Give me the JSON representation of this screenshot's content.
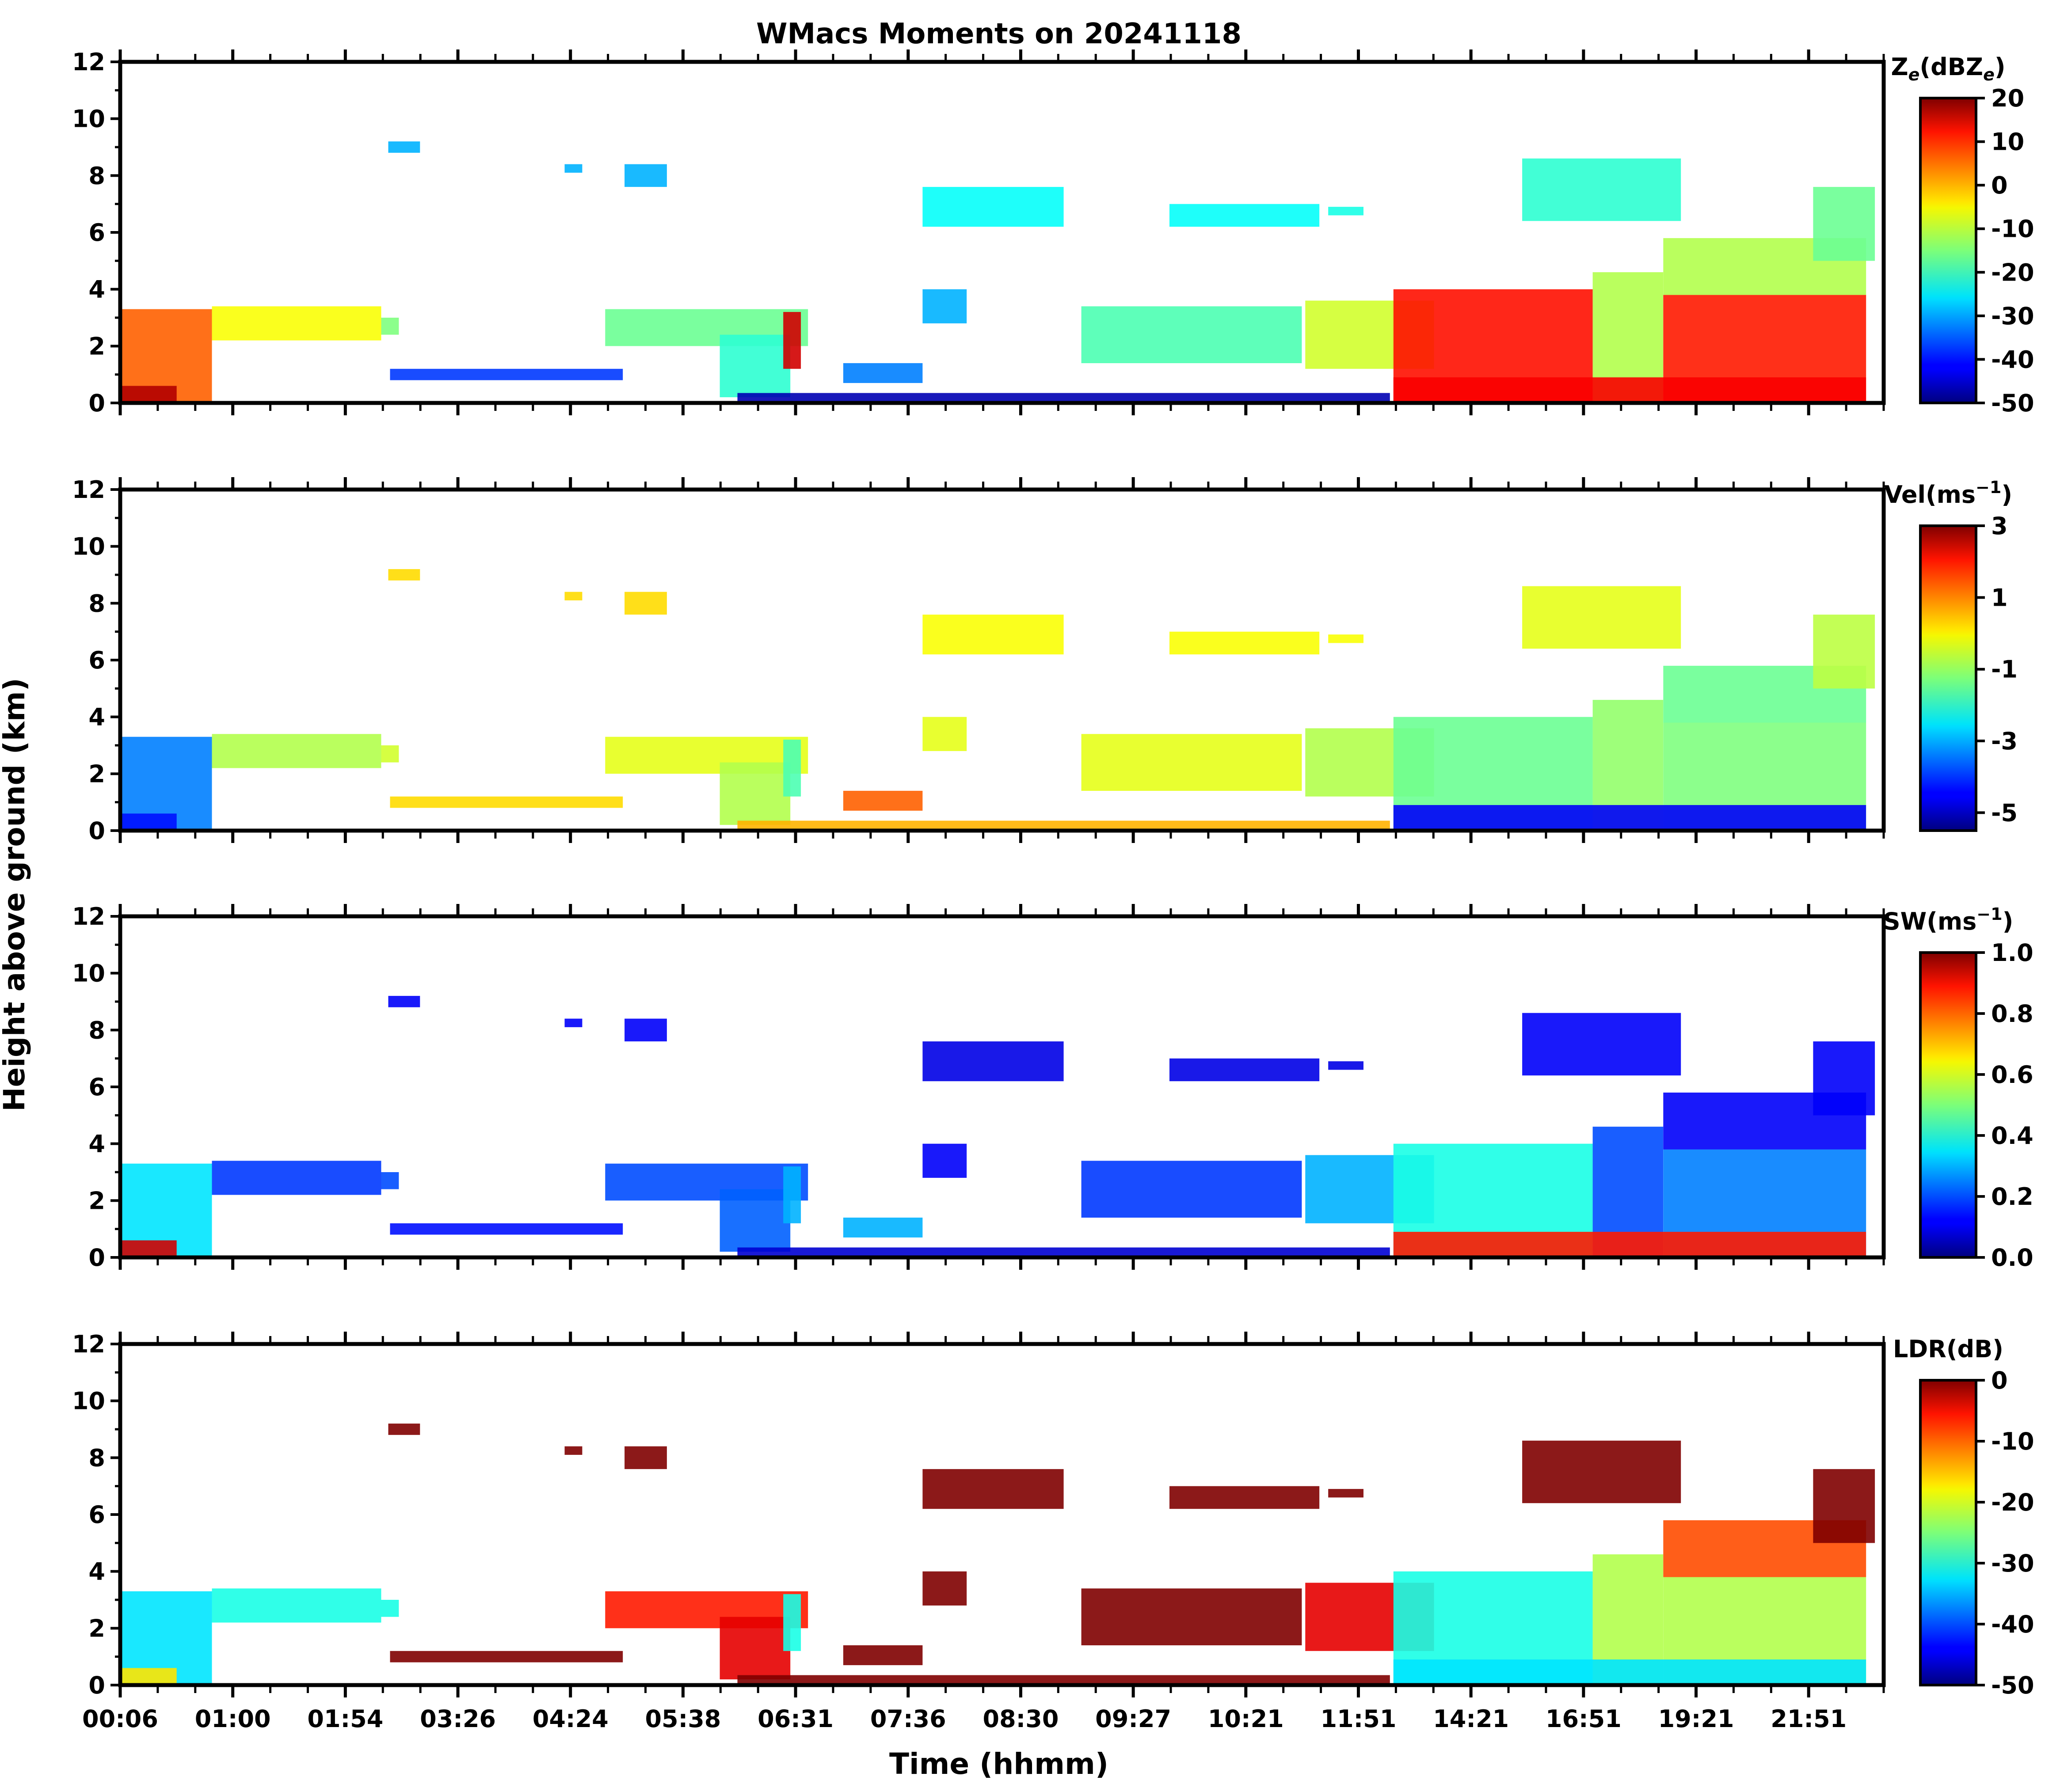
{
  "chart_data": {
    "type": "heatmap",
    "title": "WMacs Moments on 20241118",
    "xlabel": "Time (hhmm)",
    "ylabel": "Height above ground (km)",
    "x_tick_labels": [
      "00:06",
      "01:00",
      "01:54",
      "03:26",
      "04:24",
      "05:38",
      "06:31",
      "07:36",
      "08:30",
      "09:27",
      "10:21",
      "11:51",
      "14:21",
      "16:51",
      "19:21",
      "21:51"
    ],
    "y_ticks": [
      0,
      2,
      4,
      6,
      8,
      10,
      12
    ],
    "ylim": [
      0,
      12
    ],
    "colormap": "jet",
    "panels": [
      {
        "name": "reflectivity",
        "colorbar_label": "Z_e(dBZ_e)",
        "label_main": "Z",
        "label_sub": "e",
        "label_mid": "(dBZ",
        "label_end": ")",
        "cbar_range": [
          -50,
          20
        ],
        "cbar_ticks": [
          20,
          10,
          0,
          -10,
          -20,
          -30,
          -40,
          -50
        ]
      },
      {
        "name": "velocity",
        "colorbar_label": "Vel(ms^-1)",
        "label_main": "Vel(ms",
        "label_sup": "−1",
        "label_end": ")",
        "cbar_range": [
          -5.5,
          3
        ],
        "cbar_ticks": [
          3,
          1,
          -1,
          -3,
          -5
        ]
      },
      {
        "name": "spectrum-width",
        "colorbar_label": "SW(ms^-1)",
        "label_main": "SW(ms",
        "label_sup": "−1",
        "label_end": ")",
        "cbar_range": [
          0,
          1
        ],
        "cbar_ticks": [
          "1.0",
          "0.8",
          "0.6",
          "0.4",
          "0.2",
          "0.0"
        ]
      },
      {
        "name": "ldr",
        "colorbar_label": "LDR(dB)",
        "label_main": "LDR(dB)",
        "cbar_range": [
          -50,
          0
        ],
        "cbar_ticks": [
          0,
          -10,
          -20,
          -30,
          -40,
          -50
        ]
      }
    ]
  }
}
